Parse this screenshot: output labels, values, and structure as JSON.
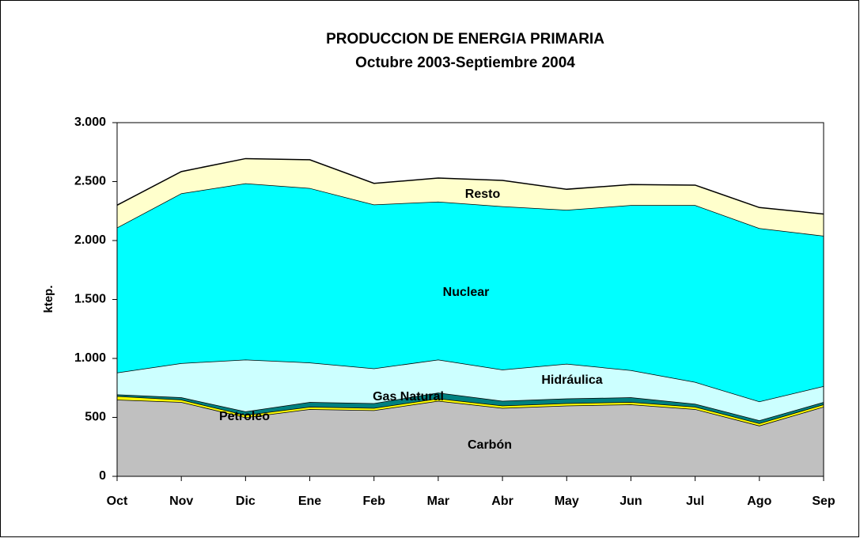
{
  "chart_data": {
    "type": "stacked-area",
    "title": "PRODUCCION DE ENERGIA PRIMARIA",
    "subtitle": "Octubre 2003-Septiembre 2004",
    "y_label": "ktep.",
    "categories": [
      "Oct",
      "Nov",
      "Dic",
      "Ene",
      "Feb",
      "Mar",
      "Abr",
      "May",
      "Jun",
      "Jul",
      "Ago",
      "Sep"
    ],
    "series": [
      {
        "name": "Carbón",
        "color": "#c0c0c0",
        "values": [
          650,
          630,
          500,
          570,
          560,
          640,
          580,
          600,
          610,
          570,
          430,
          590
        ]
      },
      {
        "name": "Petroleo",
        "color": "#ffff00",
        "values": [
          30,
          20,
          20,
          20,
          20,
          20,
          20,
          20,
          20,
          20,
          20,
          20
        ]
      },
      {
        "name": "Gas Natural",
        "color": "#008080",
        "values": [
          15,
          20,
          30,
          40,
          40,
          50,
          40,
          40,
          40,
          25,
          25,
          20
        ]
      },
      {
        "name": "Hidráulica",
        "color": "#ccffff",
        "values": [
          185,
          290,
          440,
          335,
          295,
          280,
          265,
          295,
          230,
          185,
          160,
          135
        ]
      },
      {
        "name": "Nuclear",
        "color": "#00ffff",
        "values": [
          1230,
          1440,
          1495,
          1480,
          1390,
          1340,
          1385,
          1305,
          1400,
          1500,
          1470,
          1275
        ]
      },
      {
        "name": "Resto",
        "color": "#ffffcc",
        "values": [
          190,
          185,
          210,
          240,
          180,
          200,
          220,
          175,
          175,
          170,
          175,
          185
        ]
      }
    ],
    "ylim": [
      0,
      3000
    ],
    "yticks": [
      0,
      500,
      {
        "value": 1000,
        "label": "1.000"
      },
      {
        "value": 1500,
        "label": "1.500"
      },
      {
        "value": 2000,
        "label": "2.000"
      },
      {
        "value": 2500,
        "label": "2.500"
      },
      {
        "value": 3000,
        "label": "3.000"
      }
    ],
    "grid": false
  }
}
